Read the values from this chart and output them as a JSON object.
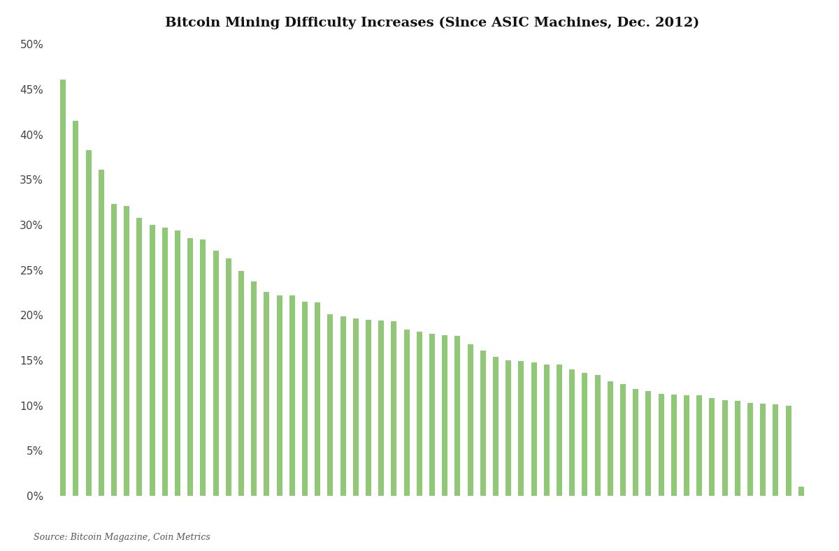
{
  "title": "Bitcoin Mining Difficulty Increases (Since ASIC Machines, Dec. 2012)",
  "source_text": "Source: Bitcoin Magazine, Coin Metrics",
  "bar_color": "#90C878",
  "background_color": "#ffffff",
  "ylim": [
    0,
    0.5
  ],
  "yticks": [
    0,
    0.05,
    0.1,
    0.15,
    0.2,
    0.25,
    0.3,
    0.35,
    0.4,
    0.45,
    0.5
  ],
  "values": [
    0.461,
    0.415,
    0.383,
    0.361,
    0.323,
    0.321,
    0.308,
    0.3,
    0.297,
    0.294,
    0.285,
    0.284,
    0.271,
    0.263,
    0.249,
    0.237,
    0.226,
    0.222,
    0.222,
    0.215,
    0.214,
    0.201,
    0.199,
    0.196,
    0.195,
    0.194,
    0.193,
    0.184,
    0.182,
    0.179,
    0.178,
    0.177,
    0.168,
    0.161,
    0.154,
    0.15,
    0.149,
    0.148,
    0.145,
    0.145,
    0.14,
    0.136,
    0.134,
    0.127,
    0.124,
    0.118,
    0.116,
    0.113,
    0.112,
    0.111,
    0.111,
    0.108,
    0.106,
    0.105,
    0.103,
    0.102,
    0.101,
    0.1,
    0.01
  ]
}
